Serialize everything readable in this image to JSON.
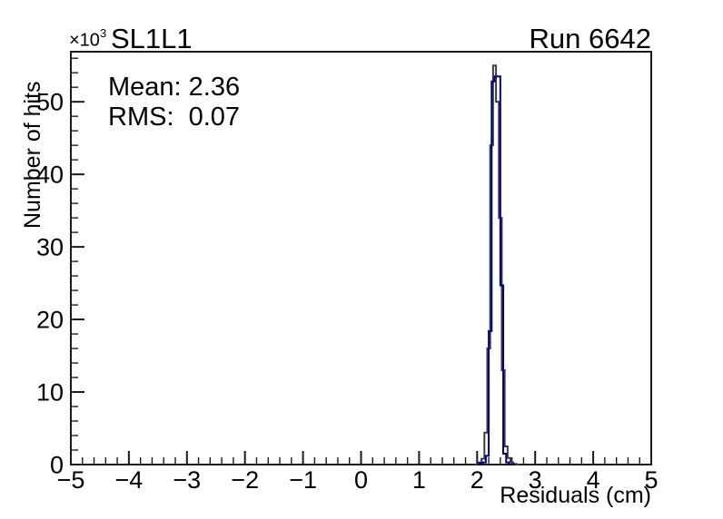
{
  "header": {
    "title": "SL1L1",
    "run_label": "Run 6642"
  },
  "stats": {
    "mean_label": "Mean: 2.36",
    "rms_label": "RMS:  0.07"
  },
  "axes": {
    "y_multiplier_base": "×10",
    "y_multiplier_exp": "3",
    "y_title": "Number of hits",
    "x_title": "Residuals (cm)"
  },
  "colors": {
    "axis": "#1a1a1a",
    "text": "#000000",
    "fit_line": "#3d3d3d",
    "hist_line": "#00008c",
    "background": "#ffffff"
  },
  "chart_data": {
    "type": "bar",
    "subtype": "step-histogram",
    "title": "SL1L1",
    "annotation_run": "Run 6642",
    "xlabel": "Residuals (cm)",
    "ylabel": "Number of hits",
    "y_unit_multiplier": "×10³",
    "mean": 2.36,
    "rms": 0.07,
    "xlim": [
      -5,
      5
    ],
    "ylim": [
      0,
      56.9
    ],
    "x_major_ticks": [
      -5,
      -4,
      -3,
      -2,
      -1,
      0,
      1,
      2,
      3,
      4,
      5
    ],
    "x_tick_labels": [
      "−5",
      "−4",
      "−3",
      "−2",
      "−1",
      "0",
      "1",
      "2",
      "3",
      "4",
      "5"
    ],
    "x_minor_step": 0.2,
    "y_major_ticks": [
      0,
      10,
      20,
      30,
      40,
      50
    ],
    "y_tick_labels": [
      "0",
      "10",
      "20",
      "30",
      "40",
      "50"
    ],
    "y_minor_step": 2,
    "grid": false,
    "legend": "none",
    "series": [
      {
        "name": "fit-outline",
        "color": "#3d3d3d",
        "line_width": 2,
        "bin_start": 1.975,
        "bin_width": 0.05,
        "values_thousands": [
          0,
          0.3,
          0.8,
          4.4,
          16,
          44,
          55,
          50,
          34,
          13,
          2.5,
          0.9,
          0.3,
          0.1,
          0
        ]
      },
      {
        "name": "residuals-histogram",
        "color": "#00008c",
        "line_width": 2,
        "bin_start": 2.0,
        "bin_width": 0.05,
        "values_thousands": [
          0,
          0.2,
          0.3,
          1.2,
          18.4,
          52.8,
          53.5,
          53.5,
          24.7,
          1.5,
          0.3,
          0,
          0
        ]
      }
    ]
  }
}
